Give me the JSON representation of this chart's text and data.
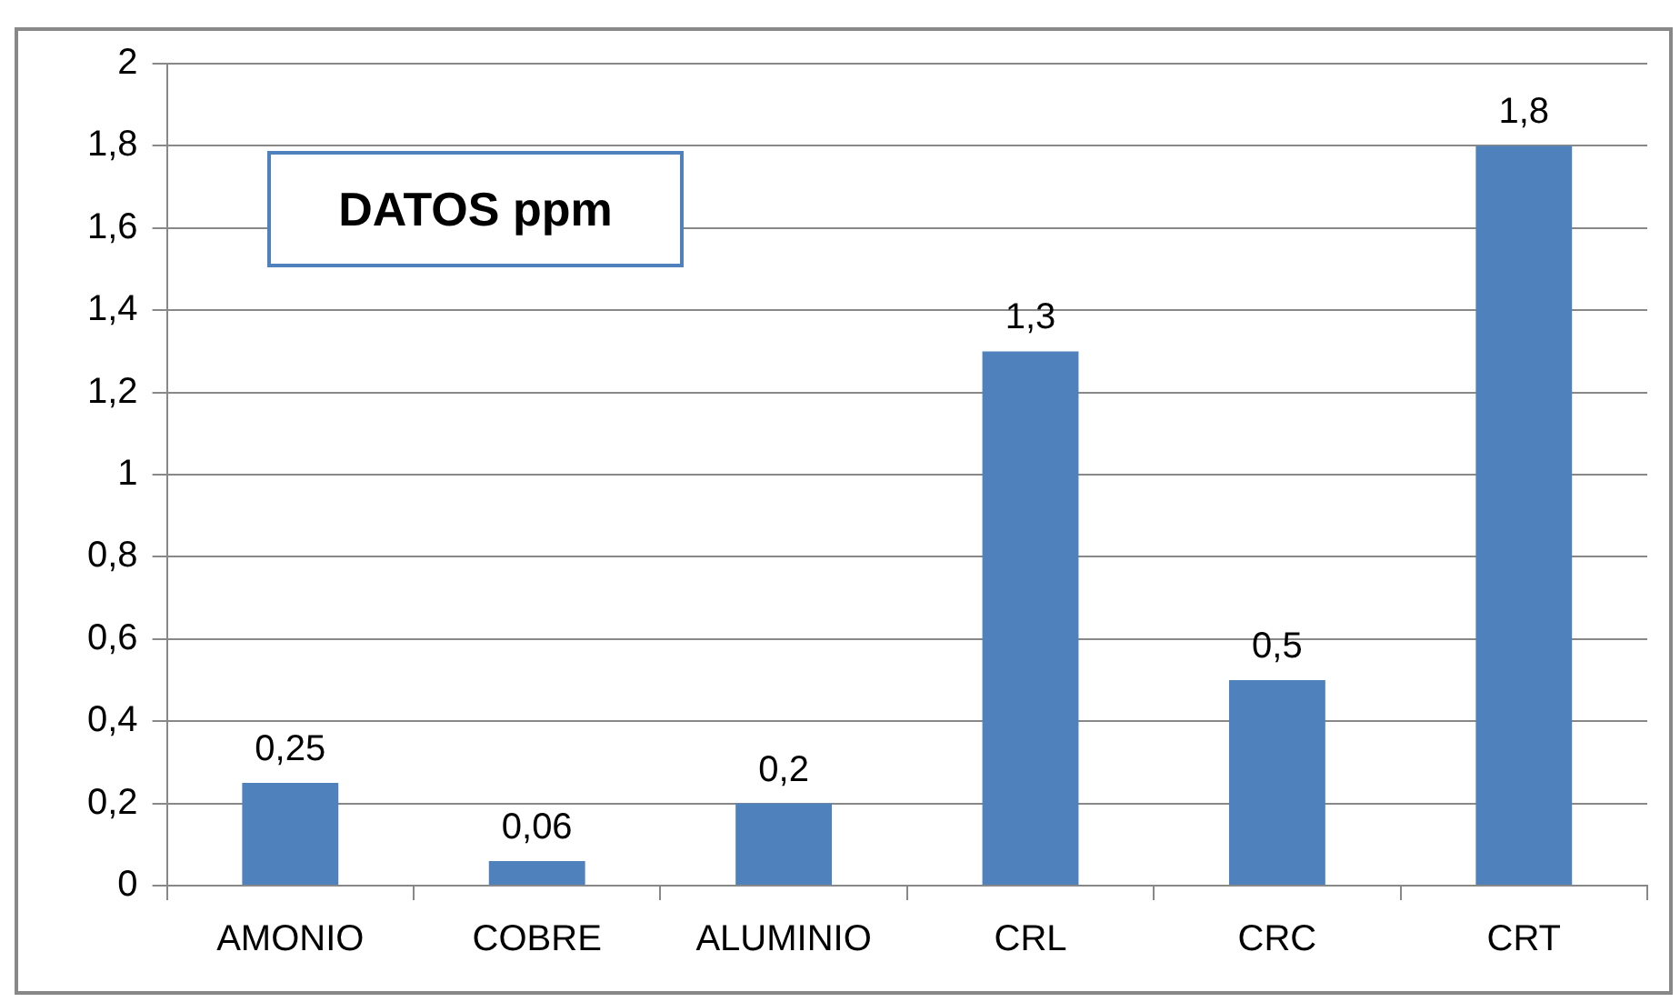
{
  "chart_data": {
    "type": "bar",
    "title": "DATOS ppm",
    "categories": [
      "AMONIO",
      "COBRE",
      "ALUMINIO",
      "CRL",
      "CRC",
      "CRT"
    ],
    "values": [
      0.25,
      0.06,
      0.2,
      1.3,
      0.5,
      1.8
    ],
    "value_labels": [
      "0,25",
      "0,06",
      "0,2",
      "1,3",
      "0,5",
      "1,8"
    ],
    "color": "#4f81bd",
    "ylim": [
      0,
      2
    ],
    "yticks": [
      0,
      {
        "value": 0.2,
        "label": "0,2"
      },
      {
        "value": 0.4,
        "label": "0,4"
      },
      {
        "value": 0.6,
        "label": "0,6"
      },
      {
        "value": 0.8,
        "label": "0,8"
      },
      1,
      {
        "value": 1.2,
        "label": "1,2"
      },
      {
        "value": 1.4,
        "label": "1,4"
      },
      {
        "value": 1.6,
        "label": "1,6"
      },
      {
        "value": 1.8,
        "label": "1,8"
      },
      2
    ],
    "grid": "y",
    "legend": false
  }
}
